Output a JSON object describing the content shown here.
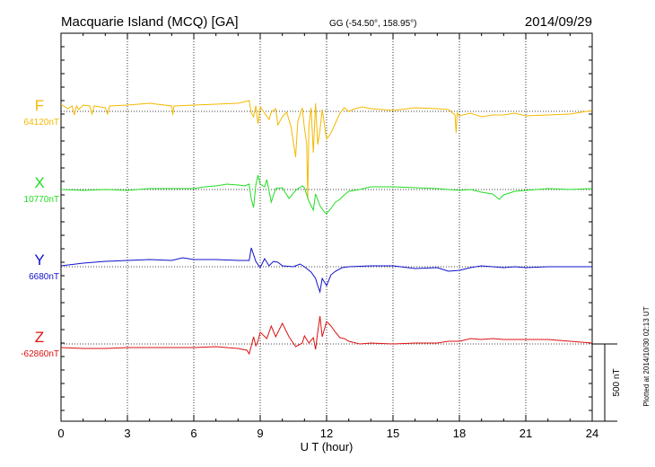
{
  "chart_data": {
    "type": "line",
    "title": "Macquarie Island (MCQ)  [GA]",
    "coords": "GG (-54.50°, 158.95°)",
    "date": "2014/09/29",
    "xlabel": "U T (hour)",
    "xlim": [
      0,
      24
    ],
    "xticks": [
      0,
      3,
      6,
      9,
      12,
      15,
      18,
      21,
      24
    ],
    "scale_label": "500 nT",
    "scale_nT": 500,
    "plotted_note": "Plotted at 2014/10/30 02:13 UT",
    "series": [
      {
        "name": "F",
        "baseline_label": "64120nT",
        "color": "#f5b800",
        "points": [
          [
            0,
            116
          ],
          [
            0.3,
            121
          ],
          [
            0.5,
            118
          ],
          [
            0.6,
            128
          ],
          [
            0.7,
            118
          ],
          [
            0.8,
            122
          ],
          [
            1.0,
            117
          ],
          [
            1.3,
            118
          ],
          [
            1.4,
            127
          ],
          [
            1.5,
            118
          ],
          [
            2.0,
            120
          ],
          [
            2.1,
            127
          ],
          [
            2.2,
            118
          ],
          [
            3.0,
            117
          ],
          [
            4.0,
            115
          ],
          [
            5.0,
            118
          ],
          [
            5.05,
            128
          ],
          [
            5.1,
            118
          ],
          [
            6.0,
            117
          ],
          [
            7.0,
            116
          ],
          [
            8.0,
            115
          ],
          [
            8.5,
            112
          ],
          [
            8.6,
            126
          ],
          [
            8.7,
            130
          ],
          [
            8.8,
            118
          ],
          [
            8.9,
            138
          ],
          [
            9.0,
            119
          ],
          [
            9.2,
            126
          ],
          [
            9.4,
            133
          ],
          [
            9.5,
            125
          ],
          [
            9.7,
            121
          ],
          [
            9.8,
            139
          ],
          [
            10.0,
            130
          ],
          [
            10.2,
            125
          ],
          [
            10.4,
            142
          ],
          [
            10.6,
            175
          ],
          [
            10.7,
            135
          ],
          [
            10.9,
            120
          ],
          [
            11.0,
            143
          ],
          [
            11.1,
            160
          ],
          [
            11.15,
            222
          ],
          [
            11.2,
            140
          ],
          [
            11.3,
            120
          ],
          [
            11.4,
            170
          ],
          [
            11.5,
            115
          ],
          [
            11.6,
            161
          ],
          [
            11.7,
            145
          ],
          [
            11.8,
            122
          ],
          [
            12.0,
            155
          ],
          [
            12.2,
            148
          ],
          [
            12.4,
            137
          ],
          [
            12.6,
            126
          ],
          [
            12.8,
            120
          ],
          [
            13.0,
            124
          ],
          [
            13.3,
            121
          ],
          [
            13.6,
            119
          ],
          [
            14.0,
            121
          ],
          [
            15.0,
            123
          ],
          [
            16.0,
            120
          ],
          [
            17.0,
            121
          ],
          [
            17.5,
            122
          ],
          [
            17.8,
            128
          ],
          [
            17.85,
            148
          ],
          [
            17.9,
            126
          ],
          [
            18.0,
            129
          ],
          [
            18.5,
            126
          ],
          [
            19.0,
            130
          ],
          [
            19.5,
            128
          ],
          [
            20.0,
            128
          ],
          [
            20.5,
            126
          ],
          [
            21.0,
            129
          ],
          [
            22.0,
            128
          ],
          [
            23.0,
            127
          ],
          [
            24.0,
            123
          ]
        ]
      },
      {
        "name": "X",
        "baseline_label": "10770nT",
        "color": "#22dd22",
        "points": [
          [
            0,
            211
          ],
          [
            1,
            212
          ],
          [
            2,
            211
          ],
          [
            3,
            212
          ],
          [
            4,
            210
          ],
          [
            5,
            210
          ],
          [
            6,
            210
          ],
          [
            6.5,
            208
          ],
          [
            7,
            207
          ],
          [
            7.5,
            205
          ],
          [
            8,
            206
          ],
          [
            8.3,
            207
          ],
          [
            8.5,
            205
          ],
          [
            8.6,
            222
          ],
          [
            8.7,
            231
          ],
          [
            8.8,
            206
          ],
          [
            8.9,
            195
          ],
          [
            9.0,
            205
          ],
          [
            9.2,
            208
          ],
          [
            9.3,
            200
          ],
          [
            9.5,
            225
          ],
          [
            9.7,
            210
          ],
          [
            10.0,
            209
          ],
          [
            10.3,
            221
          ],
          [
            10.6,
            212
          ],
          [
            10.9,
            207
          ],
          [
            11.0,
            209
          ],
          [
            11.2,
            224
          ],
          [
            11.4,
            234
          ],
          [
            11.5,
            216
          ],
          [
            11.7,
            229
          ],
          [
            11.9,
            236
          ],
          [
            12.0,
            238
          ],
          [
            12.2,
            232
          ],
          [
            12.4,
            225
          ],
          [
            12.6,
            222
          ],
          [
            12.8,
            217
          ],
          [
            13.0,
            213
          ],
          [
            13.5,
            211
          ],
          [
            14.0,
            208
          ],
          [
            15.0,
            208
          ],
          [
            16.0,
            209
          ],
          [
            17.0,
            210
          ],
          [
            18.0,
            212
          ],
          [
            18.5,
            211
          ],
          [
            19.0,
            214
          ],
          [
            19.5,
            216
          ],
          [
            19.8,
            222
          ],
          [
            20.0,
            217
          ],
          [
            20.5,
            213
          ],
          [
            21.0,
            212
          ],
          [
            22.0,
            210
          ],
          [
            23.0,
            211
          ],
          [
            24.0,
            210
          ]
        ]
      },
      {
        "name": "Y",
        "baseline_label": "6680nT",
        "color": "#1111cc",
        "points": [
          [
            0,
            296
          ],
          [
            1,
            293
          ],
          [
            2,
            291
          ],
          [
            3,
            290
          ],
          [
            4,
            289
          ],
          [
            5,
            290
          ],
          [
            5.5,
            287
          ],
          [
            6,
            289
          ],
          [
            7,
            289
          ],
          [
            8,
            290
          ],
          [
            8.5,
            290
          ],
          [
            8.6,
            276
          ],
          [
            8.8,
            291
          ],
          [
            9.0,
            298
          ],
          [
            9.2,
            288
          ],
          [
            9.4,
            296
          ],
          [
            9.6,
            291
          ],
          [
            9.8,
            292
          ],
          [
            10.0,
            296
          ],
          [
            10.5,
            297
          ],
          [
            10.8,
            294
          ],
          [
            11.0,
            297
          ],
          [
            11.3,
            303
          ],
          [
            11.5,
            310
          ],
          [
            11.6,
            318
          ],
          [
            11.7,
            325
          ],
          [
            11.8,
            310
          ],
          [
            12.0,
            318
          ],
          [
            12.2,
            306
          ],
          [
            12.4,
            302
          ],
          [
            12.7,
            298
          ],
          [
            13.0,
            297
          ],
          [
            14.0,
            296
          ],
          [
            15.0,
            296
          ],
          [
            16.0,
            299
          ],
          [
            17.0,
            298
          ],
          [
            17.5,
            302
          ],
          [
            18.0,
            301
          ],
          [
            18.5,
            298
          ],
          [
            19.0,
            296
          ],
          [
            20.0,
            298
          ],
          [
            20.5,
            297
          ],
          [
            21.0,
            298
          ],
          [
            22.0,
            297
          ],
          [
            23.0,
            297
          ],
          [
            24.0,
            297
          ]
        ]
      },
      {
        "name": "Z",
        "baseline_label": "-62860nT",
        "color": "#dd1111",
        "points": [
          [
            0,
            387
          ],
          [
            1,
            388
          ],
          [
            2,
            388
          ],
          [
            3,
            387
          ],
          [
            4,
            387
          ],
          [
            5,
            387
          ],
          [
            6,
            387
          ],
          [
            7,
            386
          ],
          [
            7.5,
            387
          ],
          [
            8,
            388
          ],
          [
            8.4,
            390
          ],
          [
            8.5,
            394
          ],
          [
            8.6,
            385
          ],
          [
            8.7,
            375
          ],
          [
            8.8,
            385
          ],
          [
            8.9,
            380
          ],
          [
            9.0,
            370
          ],
          [
            9.3,
            377
          ],
          [
            9.5,
            363
          ],
          [
            9.7,
            375
          ],
          [
            10.0,
            360
          ],
          [
            10.3,
            375
          ],
          [
            10.6,
            386
          ],
          [
            10.9,
            382
          ],
          [
            11.0,
            374
          ],
          [
            11.2,
            382
          ],
          [
            11.4,
            376
          ],
          [
            11.5,
            389
          ],
          [
            11.6,
            370
          ],
          [
            11.7,
            352
          ],
          [
            11.8,
            375
          ],
          [
            12.0,
            358
          ],
          [
            12.2,
            363
          ],
          [
            12.4,
            370
          ],
          [
            12.6,
            376
          ],
          [
            12.8,
            377
          ],
          [
            13.0,
            380
          ],
          [
            13.5,
            383
          ],
          [
            14.0,
            382
          ],
          [
            15.0,
            383
          ],
          [
            16.0,
            382
          ],
          [
            17.0,
            382
          ],
          [
            17.5,
            380
          ],
          [
            18.0,
            380
          ],
          [
            18.5,
            377
          ],
          [
            19.0,
            378
          ],
          [
            19.5,
            377
          ],
          [
            20.0,
            378
          ],
          [
            21.0,
            378
          ],
          [
            22.0,
            378
          ],
          [
            22.5,
            379
          ],
          [
            23.0,
            380
          ],
          [
            24.0,
            382
          ]
        ]
      }
    ]
  }
}
